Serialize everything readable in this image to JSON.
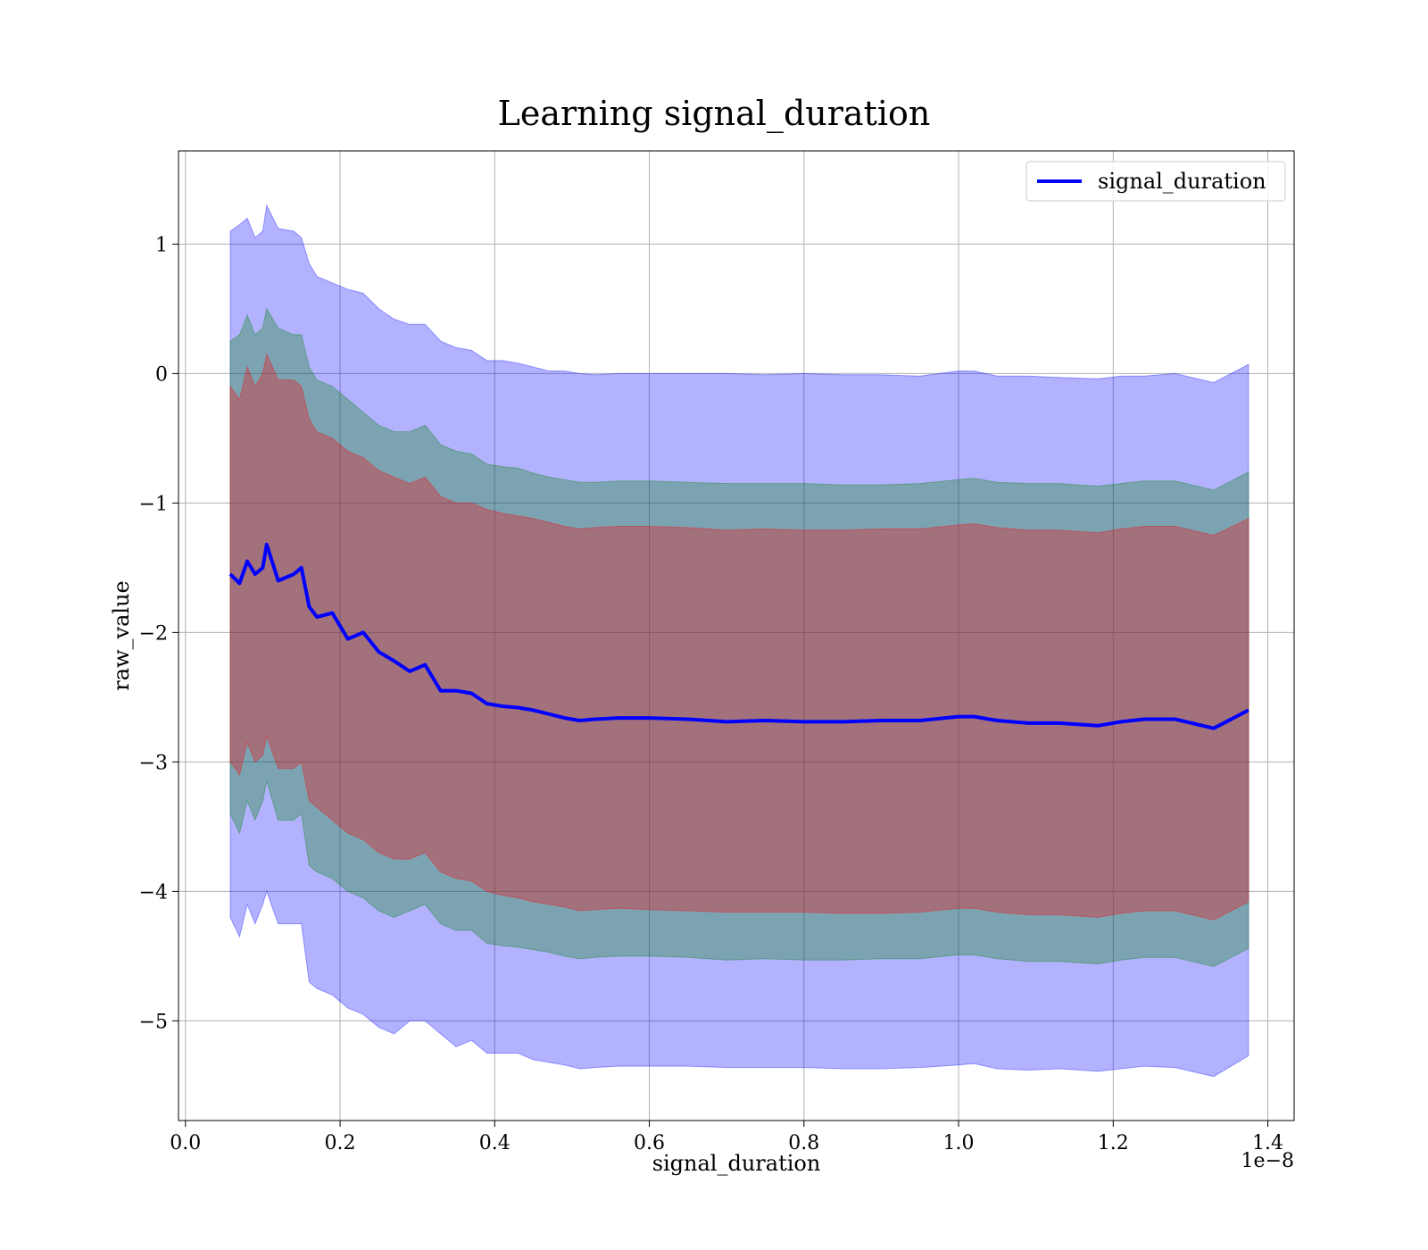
{
  "chart_data": {
    "type": "area",
    "title": "Learning signal_duration",
    "xlabel": "signal_duration",
    "ylabel": "raw_value",
    "x_offset_label": "1e−8",
    "xlim": [
      -0.009,
      1.434
    ],
    "ylim": [
      -5.77,
      1.72
    ],
    "x_ticks": [
      0.0,
      0.2,
      0.4,
      0.6,
      0.8,
      1.0,
      1.2,
      1.4
    ],
    "x_tick_labels": [
      "0.0",
      "0.2",
      "0.4",
      "0.6",
      "0.8",
      "1.0",
      "1.2",
      "1.4"
    ],
    "y_ticks": [
      1,
      0,
      -1,
      -2,
      -3,
      -4,
      -5
    ],
    "y_tick_labels": [
      "1",
      "0",
      "−1",
      "−2",
      "−3",
      "−4",
      "−5"
    ],
    "grid": true,
    "legend": {
      "entries": [
        "signal_duration"
      ],
      "position": "top-right"
    },
    "colors": {
      "line": "#0000ff",
      "band_outer": "#0000ff",
      "band_middle": "#008000",
      "band_inner": "#ff0000"
    },
    "x": [
      0.058,
      0.07,
      0.08,
      0.09,
      0.1,
      0.105,
      0.12,
      0.14,
      0.15,
      0.16,
      0.17,
      0.19,
      0.21,
      0.23,
      0.25,
      0.27,
      0.29,
      0.31,
      0.33,
      0.35,
      0.37,
      0.39,
      0.41,
      0.43,
      0.45,
      0.47,
      0.49,
      0.51,
      0.53,
      0.56,
      0.6,
      0.65,
      0.7,
      0.75,
      0.8,
      0.85,
      0.9,
      0.95,
      1.0,
      1.02,
      1.05,
      1.09,
      1.13,
      1.18,
      1.21,
      1.24,
      1.28,
      1.33,
      1.375
    ],
    "series": [
      {
        "name": "signal_duration",
        "values": [
          -1.55,
          -1.62,
          -1.45,
          -1.55,
          -1.5,
          -1.32,
          -1.6,
          -1.55,
          -1.5,
          -1.8,
          -1.88,
          -1.85,
          -2.05,
          -2.0,
          -2.15,
          -2.22,
          -2.3,
          -2.25,
          -2.45,
          -2.45,
          -2.47,
          -2.55,
          -2.57,
          -2.58,
          -2.6,
          -2.63,
          -2.66,
          -2.68,
          -2.67,
          -2.66,
          -2.66,
          -2.67,
          -2.69,
          -2.68,
          -2.69,
          -2.69,
          -2.68,
          -2.68,
          -2.65,
          -2.65,
          -2.68,
          -2.7,
          -2.7,
          -2.72,
          -2.69,
          -2.67,
          -2.67,
          -2.74,
          -2.6
        ]
      }
    ],
    "bands": [
      {
        "upper": [
          1.1,
          1.15,
          1.2,
          1.05,
          1.1,
          1.3,
          1.12,
          1.1,
          1.05,
          0.85,
          0.75,
          0.7,
          0.65,
          0.62,
          0.5,
          0.42,
          0.38,
          0.38,
          0.25,
          0.2,
          0.18,
          0.1,
          0.1,
          0.08,
          0.05,
          0.02,
          0.02,
          0.0,
          -0.01,
          0.0,
          0.0,
          0.0,
          0.0,
          -0.01,
          0.0,
          -0.01,
          -0.01,
          -0.02,
          0.02,
          0.02,
          -0.02,
          -0.02,
          -0.03,
          -0.04,
          -0.02,
          -0.02,
          0.0,
          -0.07,
          0.07
        ],
        "lower": [
          -4.2,
          -4.35,
          -4.1,
          -4.25,
          -4.1,
          -4.0,
          -4.25,
          -4.25,
          -4.25,
          -4.7,
          -4.75,
          -4.8,
          -4.9,
          -4.95,
          -5.05,
          -5.1,
          -5.0,
          -5.0,
          -5.1,
          -5.2,
          -5.15,
          -5.25,
          -5.25,
          -5.25,
          -5.3,
          -5.32,
          -5.34,
          -5.37,
          -5.36,
          -5.35,
          -5.35,
          -5.35,
          -5.36,
          -5.36,
          -5.36,
          -5.37,
          -5.37,
          -5.36,
          -5.34,
          -5.33,
          -5.37,
          -5.38,
          -5.37,
          -5.39,
          -5.37,
          -5.35,
          -5.36,
          -5.43,
          -5.27
        ]
      },
      {
        "upper": [
          0.25,
          0.3,
          0.45,
          0.3,
          0.35,
          0.5,
          0.35,
          0.3,
          0.3,
          0.05,
          -0.05,
          -0.1,
          -0.2,
          -0.3,
          -0.4,
          -0.45,
          -0.45,
          -0.4,
          -0.55,
          -0.6,
          -0.62,
          -0.7,
          -0.72,
          -0.73,
          -0.77,
          -0.8,
          -0.82,
          -0.84,
          -0.84,
          -0.83,
          -0.83,
          -0.84,
          -0.85,
          -0.85,
          -0.85,
          -0.86,
          -0.86,
          -0.85,
          -0.82,
          -0.81,
          -0.84,
          -0.85,
          -0.85,
          -0.87,
          -0.85,
          -0.83,
          -0.83,
          -0.9,
          -0.76
        ],
        "lower": [
          -3.4,
          -3.55,
          -3.3,
          -3.45,
          -3.3,
          -3.15,
          -3.45,
          -3.45,
          -3.4,
          -3.8,
          -3.85,
          -3.9,
          -4.0,
          -4.05,
          -4.15,
          -4.2,
          -4.15,
          -4.1,
          -4.25,
          -4.3,
          -4.3,
          -4.4,
          -4.42,
          -4.43,
          -4.45,
          -4.47,
          -4.5,
          -4.52,
          -4.51,
          -4.5,
          -4.5,
          -4.51,
          -4.53,
          -4.52,
          -4.53,
          -4.53,
          -4.52,
          -4.52,
          -4.49,
          -4.49,
          -4.52,
          -4.54,
          -4.54,
          -4.56,
          -4.53,
          -4.51,
          -4.51,
          -4.58,
          -4.44
        ]
      },
      {
        "upper": [
          -0.1,
          -0.2,
          0.05,
          -0.1,
          0.0,
          0.15,
          -0.05,
          -0.05,
          -0.1,
          -0.35,
          -0.45,
          -0.5,
          -0.6,
          -0.65,
          -0.75,
          -0.8,
          -0.85,
          -0.8,
          -0.95,
          -1.0,
          -1.0,
          -1.05,
          -1.08,
          -1.1,
          -1.12,
          -1.15,
          -1.18,
          -1.2,
          -1.19,
          -1.18,
          -1.18,
          -1.19,
          -1.21,
          -1.2,
          -1.21,
          -1.21,
          -1.2,
          -1.2,
          -1.17,
          -1.16,
          -1.19,
          -1.21,
          -1.21,
          -1.23,
          -1.2,
          -1.18,
          -1.18,
          -1.25,
          -1.12
        ],
        "lower": [
          -3.0,
          -3.1,
          -2.85,
          -3.0,
          -2.95,
          -2.8,
          -3.05,
          -3.05,
          -3.0,
          -3.3,
          -3.35,
          -3.45,
          -3.55,
          -3.6,
          -3.7,
          -3.75,
          -3.75,
          -3.7,
          -3.85,
          -3.9,
          -3.92,
          -4.0,
          -4.03,
          -4.05,
          -4.08,
          -4.1,
          -4.12,
          -4.15,
          -4.14,
          -4.13,
          -4.14,
          -4.15,
          -4.16,
          -4.16,
          -4.16,
          -4.17,
          -4.17,
          -4.16,
          -4.13,
          -4.13,
          -4.16,
          -4.18,
          -4.18,
          -4.2,
          -4.17,
          -4.15,
          -4.15,
          -4.22,
          -4.08
        ]
      }
    ]
  }
}
